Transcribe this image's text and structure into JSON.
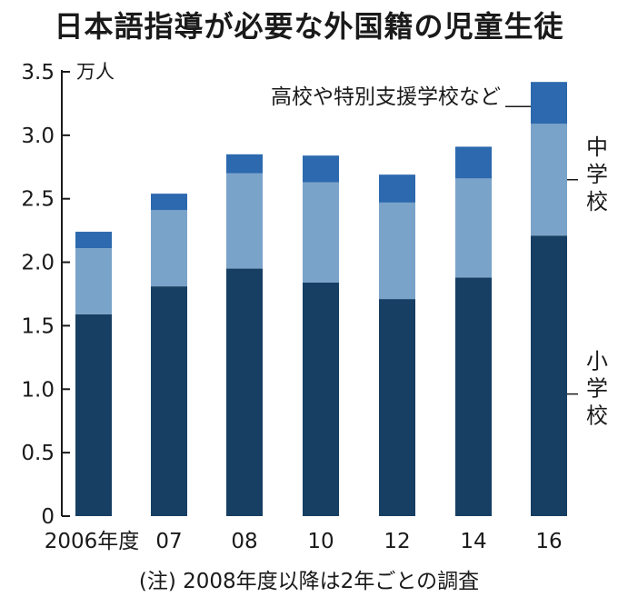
{
  "chart_data": {
    "type": "bar",
    "stacked": true,
    "title": "日本語指導が必要な外国籍の児童生徒",
    "unit_label": "万人",
    "categories": [
      "2006年度",
      "07",
      "08",
      "10",
      "12",
      "14",
      "16"
    ],
    "series": [
      {
        "name": "小学校",
        "color": "#173f63",
        "values": [
          1.59,
          1.81,
          1.95,
          1.84,
          1.71,
          1.88,
          2.21
        ]
      },
      {
        "name": "中学校",
        "color": "#7aa3c9",
        "values": [
          0.52,
          0.6,
          0.75,
          0.79,
          0.76,
          0.78,
          0.88
        ]
      },
      {
        "name": "高校や特別支援学校など",
        "color": "#2d69ae",
        "values": [
          0.13,
          0.13,
          0.15,
          0.21,
          0.22,
          0.25,
          0.33
        ]
      }
    ],
    "ylim": [
      0,
      3.5
    ],
    "yticks": [
      "0",
      "0.5",
      "1.0",
      "1.5",
      "2.0",
      "2.5",
      "3.0",
      "3.5"
    ],
    "legend": {
      "top_label": "高校や特別支援学校など",
      "middle_label": "中学校",
      "bottom_label": "小学校"
    },
    "footnote": "(注) 2008年度以降は2年ごとの調査"
  }
}
